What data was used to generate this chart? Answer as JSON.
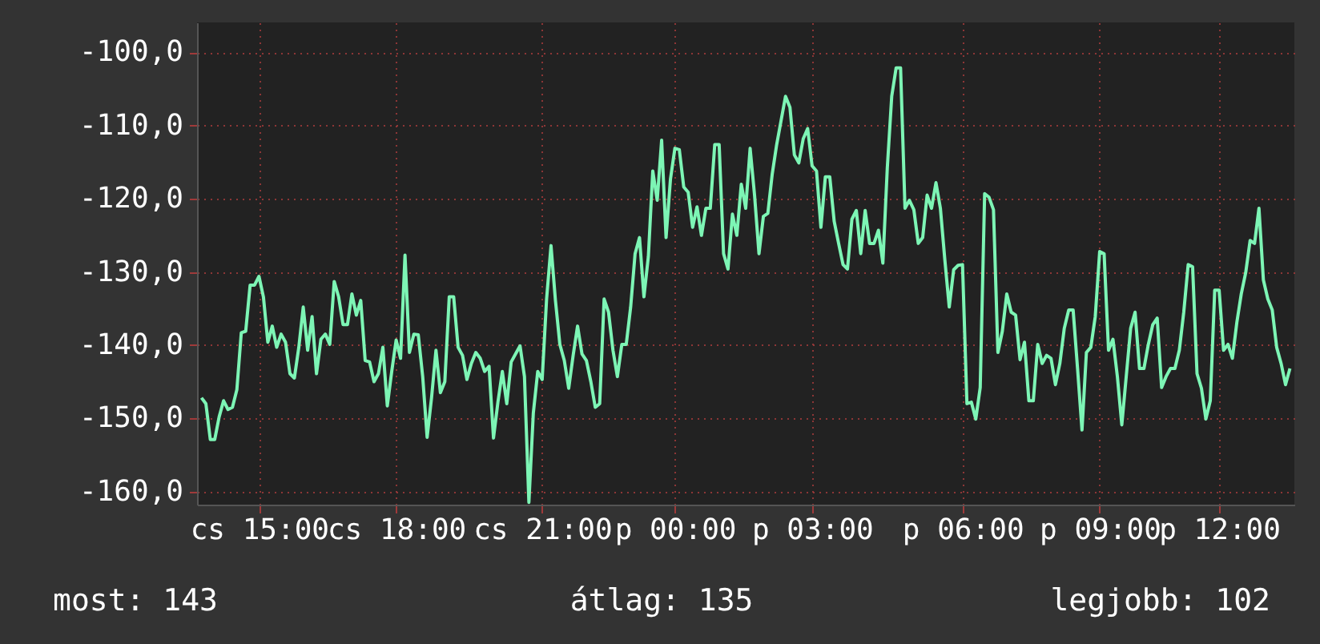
{
  "chart_data": {
    "type": "line",
    "annotations": [
      "most: 143",
      "átlag: 135",
      "legjobb: 102"
    ],
    "categories": [
      null,
      null,
      null,
      null,
      null,
      null,
      null,
      null,
      null,
      null,
      null,
      null,
      null,
      "cs 15:00",
      null,
      null,
      null,
      null,
      null,
      null,
      null,
      null,
      null,
      null,
      null,
      null,
      null,
      null,
      null,
      null,
      null,
      null,
      null,
      null,
      null,
      null,
      null,
      null,
      null,
      null,
      null,
      null,
      null,
      null,
      "cs 18:00",
      null,
      null,
      null,
      null,
      null,
      null,
      null,
      null,
      null,
      null,
      null,
      null,
      null,
      null,
      null,
      null,
      null,
      null,
      null,
      null,
      null,
      null,
      null,
      null,
      null,
      null,
      null,
      null,
      null,
      null,
      null,
      null,
      "cs 21:00",
      null,
      null,
      null,
      null,
      null,
      null,
      null,
      null,
      null,
      null,
      null,
      null,
      null,
      null,
      null,
      null,
      null,
      null,
      null,
      null,
      null,
      null,
      null,
      null,
      null,
      null,
      null,
      null,
      null,
      "p 00:00",
      null,
      null,
      null,
      null,
      null,
      null,
      null,
      null,
      null,
      null,
      null,
      null,
      null,
      null,
      null,
      null,
      null,
      null,
      null,
      null,
      null,
      null,
      null,
      null,
      null,
      null,
      null,
      null,
      null,
      null,
      "p 03:00",
      null,
      null,
      null,
      null,
      null,
      null,
      null,
      null,
      null,
      null,
      null,
      null,
      null,
      null,
      null,
      null,
      null,
      null,
      null,
      null,
      null,
      null,
      null,
      null,
      null,
      null,
      null,
      null,
      null,
      null,
      null,
      null,
      null,
      "p 06:00",
      null,
      null,
      null,
      null,
      null,
      null,
      null,
      null,
      null,
      null,
      null,
      null,
      null,
      null,
      null,
      null,
      null,
      null,
      null,
      null,
      null,
      null,
      null,
      null,
      null,
      null,
      null,
      null,
      null,
      null,
      "p 09:00",
      null,
      null,
      null,
      null,
      null,
      null,
      null,
      null,
      null,
      null,
      null,
      null,
      null,
      null,
      null,
      null,
      null,
      null,
      null,
      null,
      null,
      null,
      null,
      null,
      null,
      null,
      "p 12:00",
      null,
      null,
      null,
      null,
      null,
      null,
      null,
      null,
      null,
      null,
      null,
      null,
      null,
      null,
      null,
      null
    ],
    "series": [
      {
        "color": "#7df5b5",
        "values": [
          -147.2,
          -148.0,
          -152.9,
          -152.9,
          -149.8,
          -147.6,
          -148.8,
          -148.5,
          -146.1,
          -138.3,
          -138.1,
          -131.8,
          -131.8,
          -130.6,
          -133.4,
          -139.6,
          -137.4,
          -140.3,
          -138.5,
          -139.6,
          -143.9,
          -144.5,
          -140.3,
          -134.8,
          -140.7,
          -136.1,
          -143.9,
          -139.2,
          -138.5,
          -139.9,
          -131.3,
          -133.4,
          -137.2,
          -137.2,
          -133.0,
          -135.9,
          -133.9,
          -142.1,
          -142.3,
          -145.0,
          -143.9,
          -140.3,
          -148.3,
          -143.6,
          -139.3,
          -141.8,
          -127.7,
          -141.0,
          -138.5,
          -138.6,
          -144.3,
          -152.6,
          -147.2,
          -140.7,
          -146.5,
          -145.0,
          -133.4,
          -133.4,
          -140.3,
          -141.4,
          -144.7,
          -142.5,
          -141.0,
          -141.8,
          -143.6,
          -142.9,
          -152.7,
          -147.8,
          -143.6,
          -148.0,
          -142.3,
          -141.2,
          -140.1,
          -144.3,
          -161.5,
          -149.3,
          -143.6,
          -144.7,
          -133.7,
          -126.4,
          -133.9,
          -139.9,
          -142.1,
          -145.9,
          -141.4,
          -137.4,
          -141.2,
          -142.1,
          -145.0,
          -148.5,
          -148.0,
          -133.7,
          -135.5,
          -140.7,
          -144.3,
          -139.9,
          -139.9,
          -134.8,
          -127.5,
          -125.3,
          -133.4,
          -127.9,
          -116.2,
          -120.2,
          -112.0,
          -125.3,
          -117.3,
          -113.1,
          -113.3,
          -118.4,
          -119.1,
          -123.9,
          -121.1,
          -125.0,
          -121.3,
          -121.3,
          -112.6,
          -112.6,
          -127.5,
          -129.6,
          -122.1,
          -125.0,
          -118.0,
          -121.3,
          -113.1,
          -119.5,
          -127.5,
          -122.4,
          -122.0,
          -116.6,
          -112.6,
          -109.3,
          -106.0,
          -107.5,
          -114.0,
          -115.1,
          -111.8,
          -110.4,
          -115.5,
          -116.2,
          -123.9,
          -117.0,
          -117.0,
          -123.1,
          -126.1,
          -129.0,
          -129.6,
          -122.8,
          -121.6,
          -127.5,
          -121.6,
          -126.1,
          -126.1,
          -124.3,
          -128.8,
          -115.8,
          -106.0,
          -102.1,
          -102.1,
          -121.3,
          -120.2,
          -121.5,
          -126.1,
          -125.3,
          -119.5,
          -121.3,
          -117.8,
          -121.3,
          -128.3,
          -134.8,
          -129.7,
          -129.1,
          -129.0,
          -148.0,
          -147.8,
          -150.1,
          -145.8,
          -119.3,
          -119.8,
          -121.5,
          -141.0,
          -138.1,
          -133.0,
          -135.5,
          -135.9,
          -142.0,
          -139.6,
          -147.6,
          -147.6,
          -139.9,
          -142.5,
          -141.4,
          -141.8,
          -145.4,
          -142.5,
          -137.7,
          -135.2,
          -135.2,
          -143.2,
          -151.6,
          -141.0,
          -140.3,
          -136.1,
          -127.2,
          -127.5,
          -140.7,
          -139.2,
          -144.3,
          -150.9,
          -144.3,
          -137.7,
          -135.5,
          -143.2,
          -143.2,
          -139.9,
          -137.2,
          -136.3,
          -145.8,
          -144.3,
          -143.2,
          -143.2,
          -140.7,
          -135.5,
          -129.0,
          -129.3,
          -143.9,
          -145.9,
          -150.1,
          -147.6,
          -132.5,
          -132.5,
          -140.7,
          -139.9,
          -141.8,
          -136.9,
          -133.0,
          -130.1,
          -125.7,
          -126.1,
          -121.3,
          -131.1,
          -133.7,
          -135.2,
          -140.3,
          -142.5,
          -145.4,
          -143.2
        ]
      }
    ],
    "ylim": [
      -161.8,
      -95.9
    ],
    "yticks": [
      {
        "value": -160,
        "label": "-160,0"
      },
      {
        "value": -150,
        "label": "-150,0"
      },
      {
        "value": -140,
        "label": "-140,0"
      },
      {
        "value": -130,
        "label": "-130,0"
      },
      {
        "value": -120,
        "label": "-120,0"
      },
      {
        "value": -110,
        "label": "-110,0"
      },
      {
        "value": -100,
        "label": "-100,0"
      }
    ],
    "grid": true
  }
}
